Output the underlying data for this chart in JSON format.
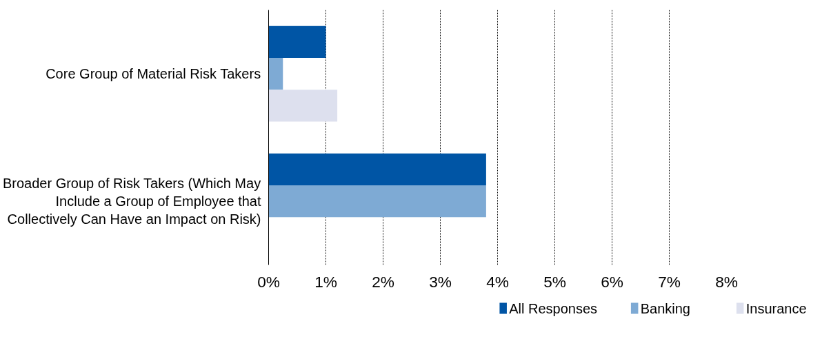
{
  "chart_data": {
    "type": "bar",
    "orientation": "horizontal",
    "categories": [
      "Core Group of Material Risk Takers",
      "Broader Group of Risk Takers (Which May Include a Group of Employee that Collectively Can Have an Impact on Risk)"
    ],
    "series": [
      {
        "name": "All Responses",
        "color": "#0055a5",
        "values": [
          1.0,
          3.8
        ]
      },
      {
        "name": "Banking",
        "color": "#7eaad4",
        "values": [
          0.25,
          3.8
        ]
      },
      {
        "name": "Insurance",
        "color": "#dde0ee",
        "values": [
          1.2,
          null
        ]
      }
    ],
    "xlim": [
      0,
      8
    ],
    "xticks": [
      {
        "value": 0,
        "label": "0%"
      },
      {
        "value": 1,
        "label": "1%"
      },
      {
        "value": 2,
        "label": "2%"
      },
      {
        "value": 3,
        "label": "3%"
      },
      {
        "value": 4,
        "label": "4%"
      },
      {
        "value": 5,
        "label": "5%"
      },
      {
        "value": 6,
        "label": "6%"
      },
      {
        "value": 7,
        "label": "7%"
      },
      {
        "value": 8,
        "label": "8%"
      }
    ],
    "grid": "x",
    "legend": "bottom"
  }
}
